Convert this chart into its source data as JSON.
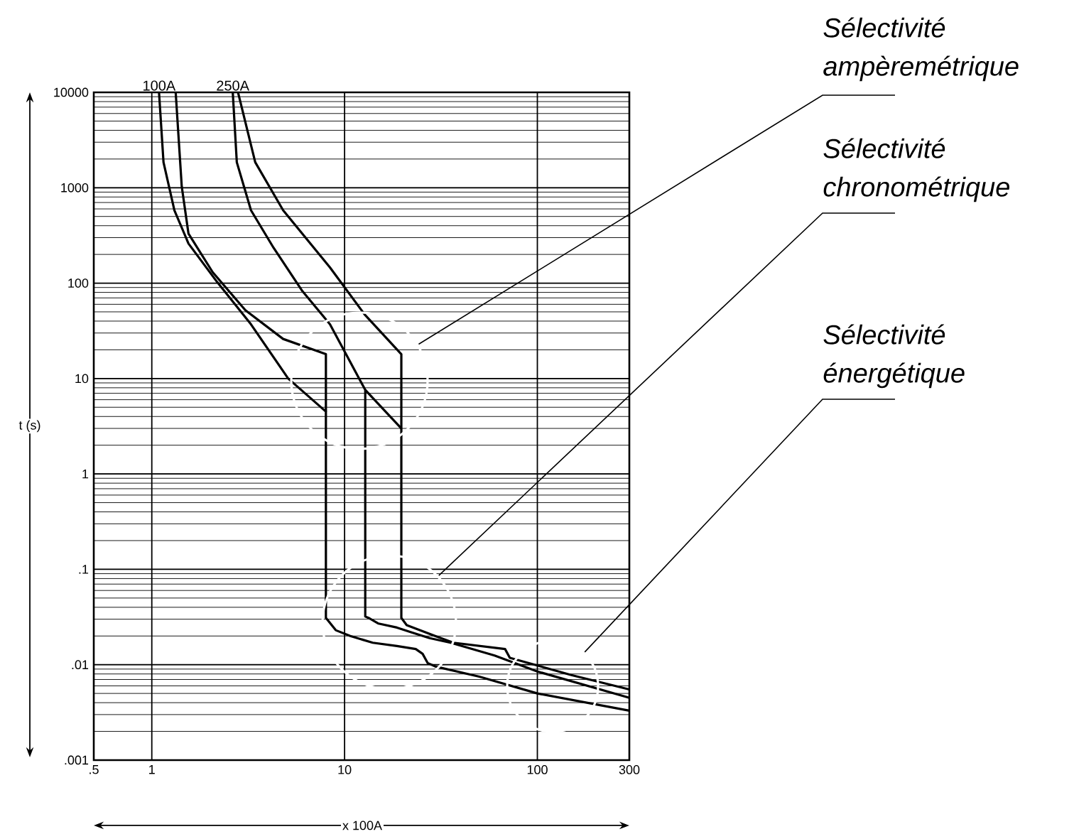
{
  "chart_data": {
    "type": "line",
    "xlabel": "x 100A",
    "ylabel": "t (s)",
    "log": "xy",
    "grid": true,
    "xlim": [
      0.5,
      300
    ],
    "ylim": [
      0.001,
      10000
    ],
    "xticks": [
      {
        "value": 0.5,
        "label": ".5"
      },
      1,
      10,
      100,
      300
    ],
    "yticks": [
      {
        "value": 0.001,
        "label": ".001"
      },
      {
        "value": 0.01,
        "label": ".01"
      },
      {
        "value": 0.1,
        "label": ".1"
      },
      1,
      10,
      100,
      1000,
      10000
    ],
    "series": [
      {
        "name": "100A",
        "color": "#000000",
        "x": [
          1.09,
          1.15,
          1.31,
          1.55,
          2.18,
          3.27,
          5.1,
          8.0,
          8.0,
          9.0,
          10.7,
          14,
          18.7,
          23.4,
          25.4,
          27,
          29.5,
          50,
          100,
          300
        ],
        "values": [
          10000,
          1850,
          580,
          260,
          103,
          37,
          10,
          4.5,
          0.031,
          0.023,
          0.02,
          0.017,
          0.0157,
          0.0146,
          0.013,
          0.0104,
          0.0096,
          0.0075,
          0.005,
          0.0033
        ]
      },
      {
        "color": "#000000",
        "x": [
          1.33,
          1.43,
          1.55,
          2.07,
          3.06,
          4.8,
          8.0,
          8.0
        ],
        "values": [
          10000,
          1030,
          330,
          130,
          52,
          26,
          18,
          4.5
        ]
      },
      {
        "name": "250A",
        "color": "#000000",
        "x": [
          2.63,
          2.76,
          3.27,
          4.28,
          6.0,
          8.4,
          12.8,
          12.8,
          13.3,
          15,
          18.7,
          22,
          27.6,
          35.5,
          60,
          100,
          300
        ],
        "values": [
          10000,
          1850,
          580,
          235,
          84,
          37,
          7.6,
          0.032,
          0.031,
          0.027,
          0.0245,
          0.022,
          0.019,
          0.017,
          0.0125,
          0.0085,
          0.0045
        ]
      },
      {
        "color": "#000000",
        "x": [
          2.8,
          3.44,
          4.8,
          8.4,
          12.7,
          19.7,
          19.7,
          21,
          29.5,
          36.7,
          68,
          72,
          150,
          300
        ],
        "values": [
          10000,
          1850,
          580,
          146,
          47,
          18,
          0.031,
          0.026,
          0.02,
          0.017,
          0.0146,
          0.0118,
          0.0078,
          0.0055
        ]
      },
      {
        "color": "#000000",
        "x": [
          12.8,
          19.7
        ],
        "values": [
          7.6,
          3.0
        ]
      }
    ],
    "annotations": [
      "Sélectivité ampèremétrique",
      "Sélectivité chronométrique",
      "Sélectivité énergétique"
    ]
  }
}
